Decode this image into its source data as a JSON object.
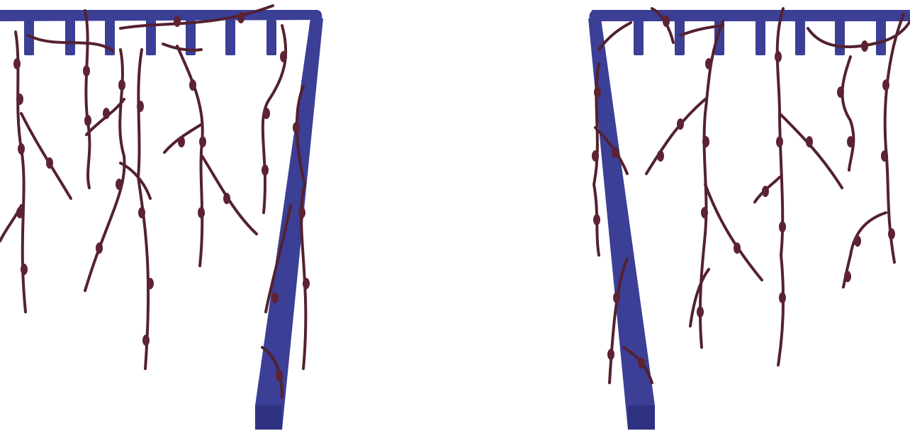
{
  "scene": {
    "description_visible_text": "",
    "background_color": "#ffffff",
    "structure_color": "#3b3f96",
    "structure_shadow_color": "#2f3280",
    "vine_color": "#54212f",
    "leaf_color": "#5d2333",
    "sprites": [
      {
        "name": "left-pergola",
        "elements": [
          "crossbeam",
          "rafter-pegs",
          "slanted-post",
          "hanging-vines"
        ]
      },
      {
        "name": "right-pergola",
        "elements": [
          "crossbeam",
          "rafter-pegs",
          "slanted-post",
          "hanging-vines"
        ]
      }
    ]
  }
}
